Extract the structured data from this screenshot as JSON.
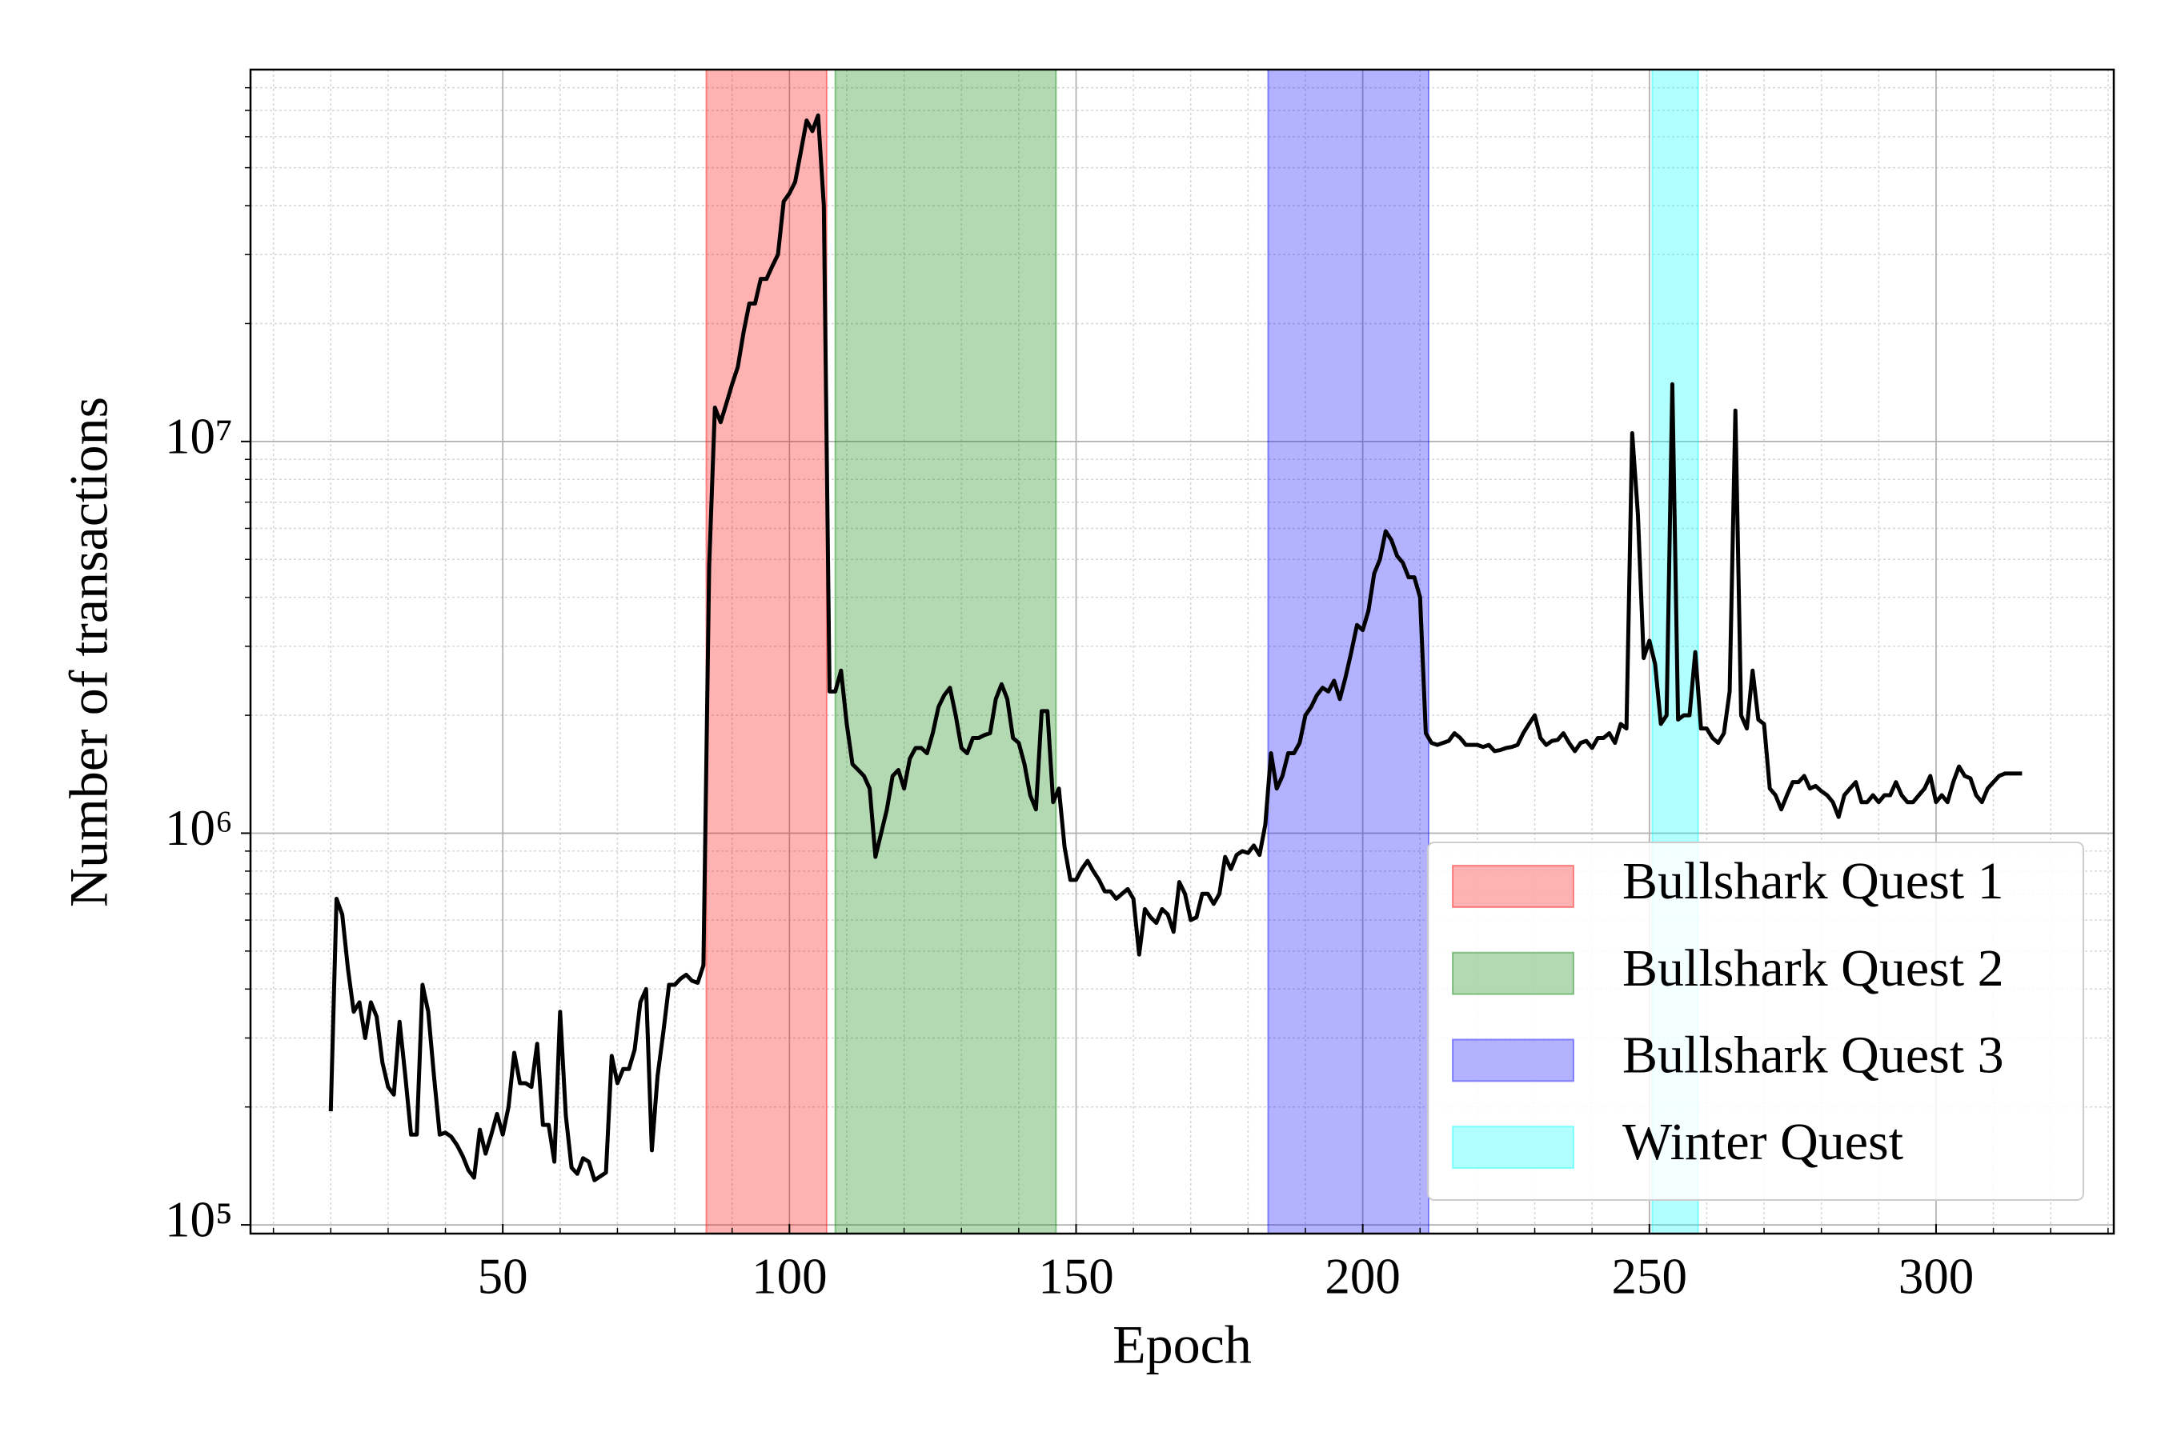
{
  "chart_data": {
    "type": "line",
    "x_label": "Epoch",
    "y_label": "Number of transactions",
    "log_y": true,
    "grid": true,
    "legend": "lower right",
    "xlim": [
      6,
      331
    ],
    "ylim": [
      95000,
      89000000
    ],
    "xticks": [
      50,
      100,
      150,
      200,
      250,
      300
    ],
    "xminor": [
      10,
      20,
      30,
      40,
      60,
      70,
      80,
      90,
      110,
      120,
      130,
      140,
      160,
      170,
      180,
      190,
      210,
      220,
      230,
      240,
      260,
      270,
      280,
      290,
      310,
      320,
      330
    ],
    "yticks": [
      {
        "value": 100000,
        "label": "10⁵"
      },
      {
        "value": 1000000,
        "label": "10⁶"
      },
      {
        "value": 10000000,
        "label": "10⁷"
      }
    ],
    "yminor": [
      200000,
      300000,
      400000,
      500000,
      600000,
      700000,
      800000,
      900000,
      2000000,
      3000000,
      4000000,
      5000000,
      6000000,
      7000000,
      8000000,
      9000000,
      20000000,
      30000000,
      40000000,
      50000000,
      60000000,
      70000000,
      80000000
    ],
    "spans": [
      {
        "name": "Bullshark Quest 1",
        "start": 85.5,
        "end": 106.5,
        "color": "#ff0000"
      },
      {
        "name": "Bullshark Quest 2",
        "start": 108,
        "end": 146.5,
        "color": "#008000"
      },
      {
        "name": "Bullshark Quest 3",
        "start": 183.5,
        "end": 211.5,
        "color": "#0000ff"
      },
      {
        "name": "Winter Quest",
        "start": 250.5,
        "end": 258.5,
        "color": "#00ffff"
      }
    ],
    "span_alpha": 0.3,
    "x": [
      20,
      21,
      22,
      23,
      24,
      25,
      26,
      27,
      28,
      29,
      30,
      31,
      32,
      33,
      34,
      35,
      36,
      37,
      38,
      39,
      40,
      41,
      42,
      43,
      44,
      45,
      46,
      47,
      48,
      49,
      50,
      51,
      52,
      53,
      54,
      55,
      56,
      57,
      58,
      59,
      60,
      61,
      62,
      63,
      64,
      65,
      66,
      67,
      68,
      69,
      70,
      71,
      72,
      73,
      74,
      75,
      76,
      77,
      78,
      79,
      80,
      81,
      82,
      83,
      84,
      85,
      86,
      87,
      88,
      89,
      90,
      91,
      92,
      93,
      94,
      95,
      96,
      97,
      98,
      99,
      100,
      101,
      102,
      103,
      104,
      105,
      106,
      107,
      108,
      109,
      110,
      111,
      112,
      113,
      114,
      115,
      116,
      117,
      118,
      119,
      120,
      121,
      122,
      123,
      124,
      125,
      126,
      127,
      128,
      129,
      130,
      131,
      132,
      133,
      134,
      135,
      136,
      137,
      138,
      139,
      140,
      141,
      142,
      143,
      144,
      145,
      146,
      147,
      148,
      149,
      150,
      151,
      152,
      153,
      154,
      155,
      156,
      157,
      158,
      159,
      160,
      161,
      162,
      163,
      164,
      165,
      166,
      167,
      168,
      169,
      170,
      171,
      172,
      173,
      174,
      175,
      176,
      177,
      178,
      179,
      180,
      181,
      182,
      183,
      184,
      185,
      186,
      187,
      188,
      189,
      190,
      191,
      192,
      193,
      194,
      195,
      196,
      197,
      198,
      199,
      200,
      201,
      202,
      203,
      204,
      205,
      206,
      207,
      208,
      209,
      210,
      211,
      212,
      213,
      214,
      215,
      216,
      217,
      218,
      219,
      220,
      221,
      222,
      223,
      224,
      225,
      226,
      227,
      228,
      229,
      230,
      231,
      232,
      233,
      234,
      235,
      236,
      237,
      238,
      239,
      240,
      241,
      242,
      243,
      244,
      245,
      246,
      247,
      248,
      249,
      250,
      251,
      252,
      253,
      254,
      255,
      256,
      257,
      258,
      259,
      260,
      261,
      262,
      263,
      264,
      265,
      266,
      267,
      268,
      269,
      270,
      271,
      272,
      273,
      274,
      275,
      276,
      277,
      278,
      279,
      280,
      281,
      282,
      283,
      284,
      285,
      286,
      287,
      288,
      289,
      290,
      291,
      292,
      293,
      294,
      295,
      296,
      297,
      298,
      299,
      300,
      301,
      302,
      303,
      304,
      305,
      306,
      307,
      308,
      309,
      310,
      311,
      312,
      313,
      314,
      315
    ],
    "series": [
      {
        "color": "#000000",
        "values": [
          195000.0,
          680000.0,
          620000.0,
          450000.0,
          350000.0,
          370000.0,
          300000.0,
          370000.0,
          340000.0,
          260000.0,
          225000.0,
          215000.0,
          330000.0,
          240000.0,
          170000.0,
          170000.0,
          410000.0,
          350000.0,
          240000.0,
          170000.0,
          172000.0,
          168000.0,
          160000.0,
          150000.0,
          138000.0,
          132000.0,
          175000.0,
          152000.0,
          170000.0,
          192000.0,
          170000.0,
          200000.0,
          275000.0,
          230000.0,
          230000.0,
          225000.0,
          290000.0,
          180000.0,
          180000.0,
          145000.0,
          350000.0,
          190000.0,
          140000.0,
          135000.0,
          148000.0,
          145000.0,
          130000.0,
          133000.0,
          136000.0,
          270000.0,
          230000.0,
          250000.0,
          250000.0,
          280000.0,
          370000.0,
          400000.0,
          155000.0,
          240000.0,
          310000.0,
          410000.0,
          410000.0,
          425000.0,
          435000.0,
          420000.0,
          415000.0,
          460000.0,
          4800000.0,
          12200000.0,
          11200000.0,
          12500000.0,
          14000000.0,
          15500000.0,
          19000000.0,
          22500000.0,
          22500000.0,
          26000000.0,
          26000000.0,
          28000000.0,
          30000000.0,
          41000000.0,
          43000000.0,
          46000000.0,
          55000000.0,
          66000000.0,
          62000000.0,
          68000000.0,
          40000000.0,
          2300000.0,
          2300000.0,
          2600000.0,
          1900000.0,
          1500000.0,
          1450000.0,
          1400000.0,
          1300000.0,
          870000.0,
          1000000.0,
          1150000.0,
          1400000.0,
          1450000.0,
          1300000.0,
          1550000.0,
          1650000.0,
          1650000.0,
          1600000.0,
          1800000.0,
          2100000.0,
          2250000.0,
          2350000.0,
          2000000.0,
          1650000.0,
          1600000.0,
          1750000.0,
          1750000.0,
          1780000.0,
          1800000.0,
          2200000.0,
          2400000.0,
          2200000.0,
          1750000.0,
          1700000.0,
          1500000.0,
          1250000.0,
          1150000.0,
          2050000.0,
          2050000.0,
          1200000.0,
          1300000.0,
          920000.0,
          760000.0,
          760000.0,
          810000.0,
          850000.0,
          800000.0,
          760000.0,
          710000.0,
          710000.0,
          680000.0,
          700000.0,
          720000.0,
          680000.0,
          490000.0,
          640000.0,
          610000.0,
          590000.0,
          640000.0,
          620000.0,
          560000.0,
          750000.0,
          700000.0,
          600000.0,
          610000.0,
          700000.0,
          700000.0,
          660000.0,
          700000.0,
          870000.0,
          810000.0,
          880000.0,
          900000.0,
          890000.0,
          930000.0,
          880000.0,
          1050000.0,
          1600000.0,
          1300000.0,
          1400000.0,
          1600000.0,
          1600000.0,
          1700000.0,
          2000000.0,
          2100000.0,
          2250000.0,
          2350000.0,
          2300000.0,
          2450000.0,
          2200000.0,
          2500000.0,
          2900000.0,
          3400000.0,
          3300000.0,
          3700000.0,
          4600000.0,
          5000000.0,
          5900000.0,
          5600000.0,
          5100000.0,
          4900000.0,
          4500000.0,
          4500000.0,
          4000000.0,
          1800000.0,
          1700000.0,
          1680000.0,
          1700000.0,
          1720000.0,
          1800000.0,
          1750000.0,
          1680000.0,
          1680000.0,
          1680000.0,
          1660000.0,
          1680000.0,
          1620000.0,
          1630000.0,
          1650000.0,
          1660000.0,
          1680000.0,
          1800000.0,
          1900000.0,
          2000000.0,
          1750000.0,
          1680000.0,
          1720000.0,
          1730000.0,
          1800000.0,
          1700000.0,
          1620000.0,
          1700000.0,
          1720000.0,
          1650000.0,
          1750000.0,
          1750000.0,
          1800000.0,
          1700000.0,
          1900000.0,
          1850000.0,
          10500000.0,
          6500000.0,
          2800000.0,
          3100000.0,
          2700000.0,
          1900000.0,
          2000000.0,
          14000000.0,
          1950000.0,
          2000000.0,
          2000000.0,
          2900000.0,
          1850000.0,
          1850000.0,
          1750000.0,
          1700000.0,
          1800000.0,
          2300000.0,
          12000000.0,
          2000000.0,
          1850000.0,
          2600000.0,
          1950000.0,
          1900000.0,
          1300000.0,
          1250000.0,
          1150000.0,
          1250000.0,
          1350000.0,
          1350000.0,
          1400000.0,
          1300000.0,
          1320000.0,
          1280000.0,
          1250000.0,
          1200000.0,
          1100000.0,
          1250000.0,
          1300000.0,
          1350000.0,
          1200000.0,
          1200000.0,
          1250000.0,
          1200000.0,
          1250000.0,
          1250000.0,
          1350000.0,
          1250000.0,
          1200000.0,
          1200000.0,
          1250000.0,
          1300000.0,
          1400000.0,
          1200000.0,
          1250000.0,
          1200000.0,
          1350000.0,
          1480000.0,
          1400000.0,
          1380000.0,
          1250000.0,
          1200000.0,
          1300000.0,
          1350000.0,
          1400000.0,
          1420000.0,
          1420000.0,
          1420000.0,
          1420000.0
        ]
      }
    ]
  }
}
